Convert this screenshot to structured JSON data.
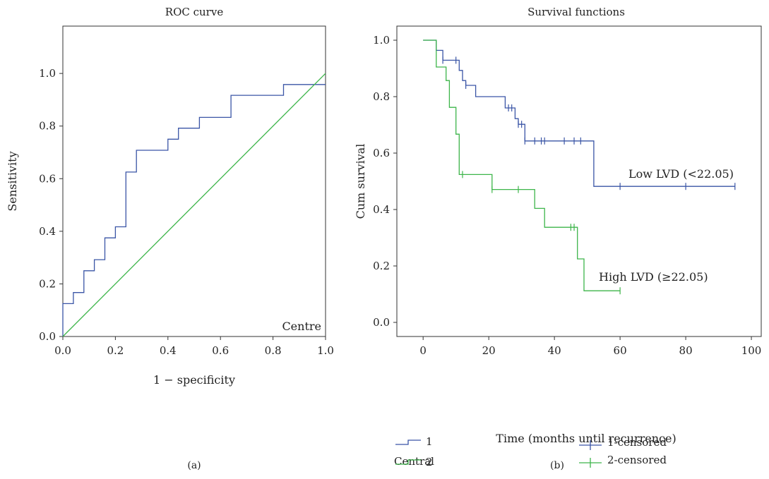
{
  "colors": {
    "blue": "#3a55a6",
    "green": "#3db54a",
    "axis": "#333333"
  },
  "chart_data": [
    {
      "type": "line",
      "panel_label": "(a)",
      "title": "ROC curve",
      "xlabel": "1 − specificity",
      "ylabel": "Sensitivity",
      "xlim": [
        0,
        1
      ],
      "ylim": [
        0,
        1.18
      ],
      "xticks": [
        "0.0",
        "0.2",
        "0.4",
        "0.6",
        "0.8",
        "1.0"
      ],
      "yticks": [
        "0.0",
        "0.2",
        "0.4",
        "0.6",
        "0.8",
        "1.0"
      ],
      "annotation": "Centre",
      "series": [
        {
          "color": "#3a55a6",
          "step": true,
          "points": [
            [
              0,
              0
            ],
            [
              0,
              0.125
            ],
            [
              0.04,
              0.125
            ],
            [
              0.04,
              0.167
            ],
            [
              0.08,
              0.167
            ],
            [
              0.08,
              0.25
            ],
            [
              0.12,
              0.25
            ],
            [
              0.12,
              0.292
            ],
            [
              0.16,
              0.292
            ],
            [
              0.16,
              0.375
            ],
            [
              0.2,
              0.375
            ],
            [
              0.2,
              0.417
            ],
            [
              0.24,
              0.417
            ],
            [
              0.24,
              0.625
            ],
            [
              0.28,
              0.625
            ],
            [
              0.28,
              0.708
            ],
            [
              0.4,
              0.708
            ],
            [
              0.4,
              0.75
            ],
            [
              0.44,
              0.75
            ],
            [
              0.44,
              0.792
            ],
            [
              0.52,
              0.792
            ],
            [
              0.52,
              0.833
            ],
            [
              0.64,
              0.833
            ],
            [
              0.64,
              0.917
            ],
            [
              0.84,
              0.917
            ],
            [
              0.84,
              0.958
            ],
            [
              1,
              0.958
            ]
          ]
        },
        {
          "color": "#3db54a",
          "step": false,
          "points": [
            [
              0,
              0
            ],
            [
              1,
              1
            ]
          ]
        }
      ]
    },
    {
      "type": "line",
      "panel_label": "(b)",
      "title": "Survival functions",
      "xlabel": "Time (months until recurrence)",
      "ylabel": "Cum survival",
      "xlim": [
        -8,
        103
      ],
      "ylim": [
        -0.05,
        1.05
      ],
      "xticks": [
        "0",
        "20",
        "40",
        "60",
        "80",
        "100"
      ],
      "yticks": [
        "0.0",
        "0.2",
        "0.4",
        "0.6",
        "0.8",
        "1.0"
      ],
      "series": [
        {
          "name": "1",
          "color": "#3a55a6",
          "label": "Low LVD (<22.05)",
          "steps": [
            [
              0,
              1.0
            ],
            [
              4,
              0.964
            ],
            [
              6,
              0.929
            ],
            [
              11,
              0.893
            ],
            [
              12,
              0.857
            ],
            [
              13,
              0.84
            ],
            [
              16,
              0.8
            ],
            [
              25,
              0.76
            ],
            [
              28,
              0.722
            ],
            [
              29,
              0.702
            ],
            [
              31,
              0.643
            ],
            [
              52,
              0.482
            ],
            [
              95,
              0.482
            ]
          ],
          "censored": [
            [
              6,
              0.929
            ],
            [
              10,
              0.929
            ],
            [
              13,
              0.84
            ],
            [
              26,
              0.76
            ],
            [
              27,
              0.76
            ],
            [
              29,
              0.702
            ],
            [
              30,
              0.702
            ],
            [
              31,
              0.643
            ],
            [
              34,
              0.643
            ],
            [
              36,
              0.643
            ],
            [
              37,
              0.643
            ],
            [
              43,
              0.643
            ],
            [
              46,
              0.643
            ],
            [
              48,
              0.643
            ],
            [
              60,
              0.482
            ],
            [
              80,
              0.482
            ],
            [
              95,
              0.482
            ]
          ]
        },
        {
          "name": "2",
          "color": "#3db54a",
          "label": "High LVD (≥22.05)",
          "steps": [
            [
              0,
              1.0
            ],
            [
              4,
              0.905
            ],
            [
              7,
              0.857
            ],
            [
              8,
              0.762
            ],
            [
              10,
              0.667
            ],
            [
              11,
              0.524
            ],
            [
              21,
              0.471
            ],
            [
              34,
              0.404
            ],
            [
              37,
              0.337
            ],
            [
              47,
              0.225
            ],
            [
              49,
              0.112
            ],
            [
              60,
              0.112
            ]
          ],
          "censored": [
            [
              12,
              0.524
            ],
            [
              21,
              0.471
            ],
            [
              29,
              0.471
            ],
            [
              45,
              0.337
            ],
            [
              46,
              0.337
            ],
            [
              60,
              0.112
            ]
          ]
        }
      ],
      "legend": {
        "title": "Central",
        "entries": [
          "1",
          "2"
        ],
        "censored_entries": [
          "1-censored",
          "2-censored"
        ]
      }
    }
  ]
}
